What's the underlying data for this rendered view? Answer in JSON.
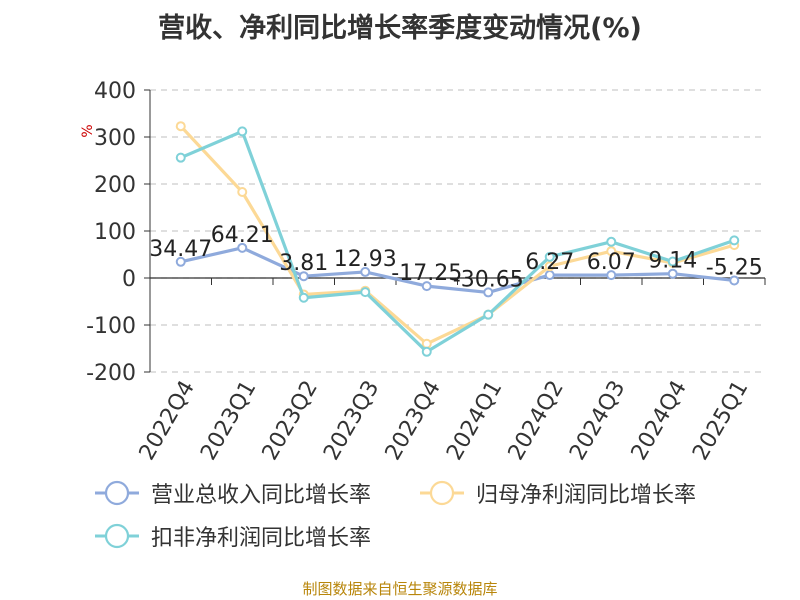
{
  "chart_data": {
    "type": "line",
    "title": "营收、净利同比增长率季度变动情况(%)",
    "ylabel": "%",
    "ylim": [
      -200,
      400
    ],
    "yticks": [
      -200,
      -100,
      0,
      100,
      200,
      300,
      400
    ],
    "grid": true,
    "legend_position": "bottom",
    "categories": [
      "2022Q4",
      "2023Q1",
      "2023Q2",
      "2023Q3",
      "2023Q4",
      "2024Q1",
      "2024Q2",
      "2024Q3",
      "2024Q4",
      "2025Q1"
    ],
    "series": [
      {
        "name": "营业总收入同比增长率",
        "color": "#8faadc",
        "values": [
          34.47,
          64.21,
          3.81,
          12.93,
          -17.25,
          -30.65,
          6.27,
          6.07,
          9.14,
          -5.25
        ],
        "labels": [
          "34.47",
          "64.21",
          "3.81",
          "12.93",
          "-17.25",
          "-30.65",
          "6.27",
          "6.07",
          "9.14",
          "-5.25"
        ]
      },
      {
        "name": "归母净利润同比增长率",
        "color": "#fcd996",
        "values": [
          323,
          183,
          -35,
          -27,
          -140,
          -78,
          25,
          57,
          32,
          70
        ]
      },
      {
        "name": "扣非净利润同比增长率",
        "color": "#7fd1d8",
        "values": [
          256,
          312,
          -42,
          -30,
          -157,
          -78,
          45,
          77,
          35,
          80
        ]
      }
    ]
  },
  "source": "制图数据来自恒生聚源数据库"
}
